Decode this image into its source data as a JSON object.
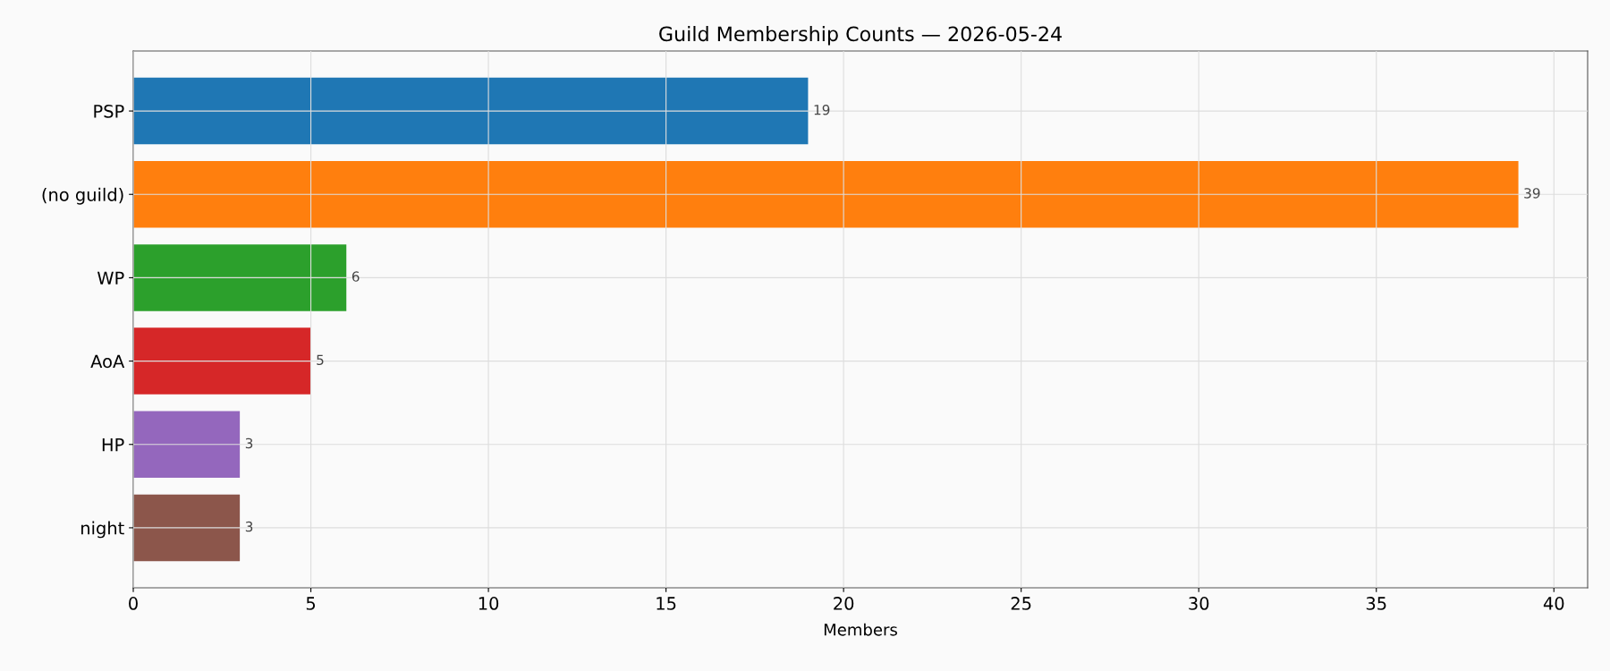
{
  "chart_data": {
    "type": "bar",
    "orientation": "horizontal",
    "title": "Guild Membership Counts — 2026-05-24",
    "xlabel": "Members",
    "categories": [
      "PSP",
      "(no guild)",
      "WP",
      "AoA",
      "HP",
      "night"
    ],
    "values": [
      19,
      39,
      6,
      5,
      3,
      3
    ],
    "colors": [
      "#1f77b4",
      "#ff7f0e",
      "#2ca02c",
      "#d62728",
      "#9467bd",
      "#8c564b"
    ],
    "xlim": [
      0,
      40.95
    ],
    "xticks": [
      0,
      5,
      10,
      15,
      20,
      25,
      30,
      35,
      40
    ],
    "data_labels": true,
    "grid": true
  }
}
